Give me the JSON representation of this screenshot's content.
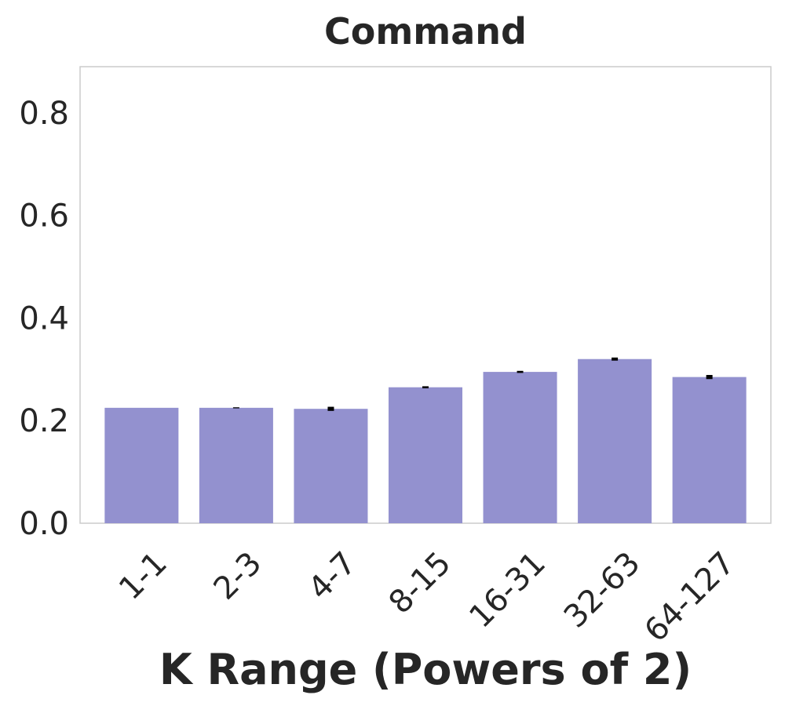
{
  "chart_data": {
    "type": "bar",
    "title": "Command",
    "xlabel": "K Range (Powers of 2)",
    "ylabel": "",
    "categories": [
      "1-1",
      "2-3",
      "4-7",
      "8-15",
      "16-31",
      "32-63",
      "64-127"
    ],
    "values": [
      0.225,
      0.225,
      0.223,
      0.265,
      0.295,
      0.32,
      0.285
    ],
    "errors": [
      0.0,
      0.001,
      0.004,
      0.002,
      0.002,
      0.003,
      0.004
    ],
    "ylim": [
      0.0,
      0.89
    ],
    "yticks": [
      "0.0",
      "0.2",
      "0.4",
      "0.6",
      "0.8"
    ],
    "ytick_values": [
      0.0,
      0.2,
      0.4,
      0.6,
      0.8
    ],
    "grid": false,
    "colors": {
      "bar": "#9391cf",
      "error": "#000000",
      "frame": "#cccccc",
      "text": "#262626"
    }
  }
}
